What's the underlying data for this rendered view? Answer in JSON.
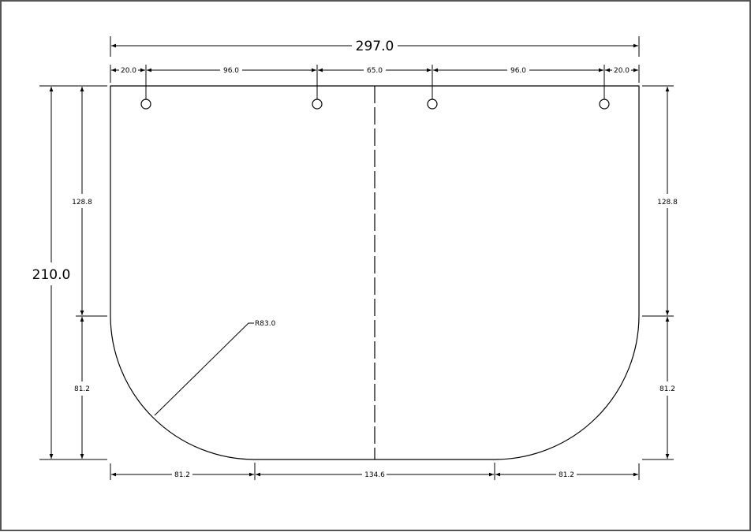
{
  "colors": {
    "background": "#ffffff",
    "stroke": "#000000",
    "frame": "#555555"
  },
  "dimensions": {
    "overall_width": "297.0",
    "overall_height": "210.0",
    "hole_spacing": [
      "20.0",
      "96.0",
      "65.0",
      "96.0",
      "20.0"
    ],
    "left_upper_height": "128.8",
    "left_lower_height": "81.2",
    "right_upper_height": "128.8",
    "right_lower_height": "81.2",
    "bottom_left": "81.2",
    "bottom_middle": "134.6",
    "bottom_right": "81.2",
    "radius": "R83.0"
  }
}
